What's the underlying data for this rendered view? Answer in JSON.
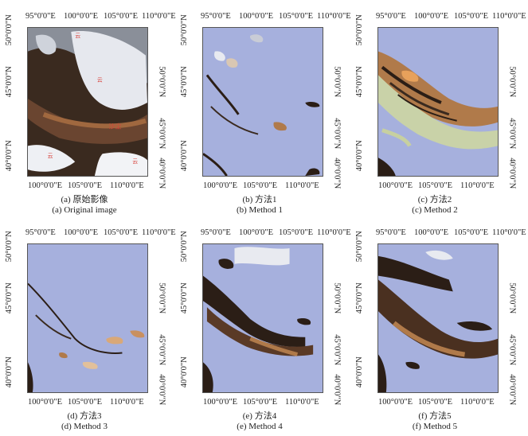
{
  "panels": [
    {
      "caption_cn": "(a) 原始影像",
      "caption_en": "(a) Original image",
      "top_ticks": [
        "95°0'0\"E",
        "100°0'0\"E",
        "105°0'0\"E",
        "110°0'0\"E"
      ],
      "bottom_ticks": [
        "100°0'0\"E",
        "105°0'0\"E",
        "110°0'0\"E"
      ],
      "left_ticks": [
        "50°0'0\"N",
        "45°0'0\"N",
        "40°0'0\"N"
      ],
      "right_ticks": [
        "50°0'0\"N",
        "45°0'0\"N",
        "40°0'0\"N"
      ],
      "labels": [
        "云",
        "云",
        "沙尘",
        "云",
        "云"
      ]
    },
    {
      "caption_cn": "(b) 方法1",
      "caption_en": "(b) Method 1",
      "top_ticks": [
        "95°0'0\"E",
        "100°0'0\"E",
        "105°0'0\"E",
        "110°0'0\"E"
      ],
      "bottom_ticks": [
        "100°0'0\"E",
        "105°0'0\"E",
        "110°0'0\"E"
      ],
      "left_ticks": [
        "50°0'0\"N",
        "45°0'0\"N",
        "40°0'0\"N"
      ],
      "right_ticks": [
        "50°0'0\"N",
        "45°0'0\"N",
        "40°0'0\"N"
      ]
    },
    {
      "caption_cn": "(c) 方法2",
      "caption_en": "(c) Method 2",
      "top_ticks": [
        "95°0'0\"E",
        "100°0'0\"E",
        "105°0'0\"E",
        "110°0'0\"E"
      ],
      "bottom_ticks": [
        "100°0'0\"E",
        "105°0'0\"E",
        "110°0'0\"E"
      ],
      "left_ticks": [
        "50°0'0\"N",
        "45°0'0\"N",
        "40°0'0\"N"
      ],
      "right_ticks": [
        "50°0'0\"N",
        "45°0'0\"N",
        "40°0'0\"N"
      ]
    },
    {
      "caption_cn": "(d) 方法3",
      "caption_en": "(d) Method 3",
      "top_ticks": [
        "95°0'0\"E",
        "100°0'0\"E",
        "105°0'0\"E",
        "110°0'0\"E"
      ],
      "bottom_ticks": [
        "100°0'0\"E",
        "105°0'0\"E",
        "110°0'0\"E"
      ],
      "left_ticks": [
        "50°0'0\"N",
        "45°0'0\"N",
        "40°0'0\"N"
      ],
      "right_ticks": [
        "50°0'0\"N",
        "45°0'0\"N",
        "40°0'0\"N"
      ]
    },
    {
      "caption_cn": "(e) 方法4",
      "caption_en": "(e) Method 4",
      "top_ticks": [
        "95°0'0\"E",
        "100°0'0\"E",
        "105°0'0\"E",
        "110°0'0\"E"
      ],
      "bottom_ticks": [
        "100°0'0\"E",
        "105°0'0\"E",
        "110°0'0\"E"
      ],
      "left_ticks": [
        "50°0'0\"N",
        "45°0'0\"N",
        "40°0'0\"N"
      ],
      "right_ticks": [
        "50°0'0\"N",
        "45°0'0\"N",
        "40°0'0\"N"
      ]
    },
    {
      "caption_cn": "(f) 方法5",
      "caption_en": "(f) Method 5",
      "top_ticks": [
        "95°0'0\"E",
        "100°0'0\"E",
        "105°0'0\"E",
        "110°0'0\"E"
      ],
      "bottom_ticks": [
        "100°0'0\"E",
        "105°0'0\"E",
        "110°0'0\"E"
      ],
      "left_ticks": [
        "50°0'0\"N",
        "45°0'0\"N",
        "40°0'0\"N"
      ],
      "right_ticks": [
        "50°0'0\"N",
        "45°0'0\"N",
        "40°0'0\"N"
      ]
    }
  ],
  "colors": {
    "background_mask": "#a6b0dd",
    "dust": "#b07a4a",
    "dark_ground": "#2b1e16",
    "cloud": "#e8eaf0",
    "label_red": "#d8403a"
  }
}
